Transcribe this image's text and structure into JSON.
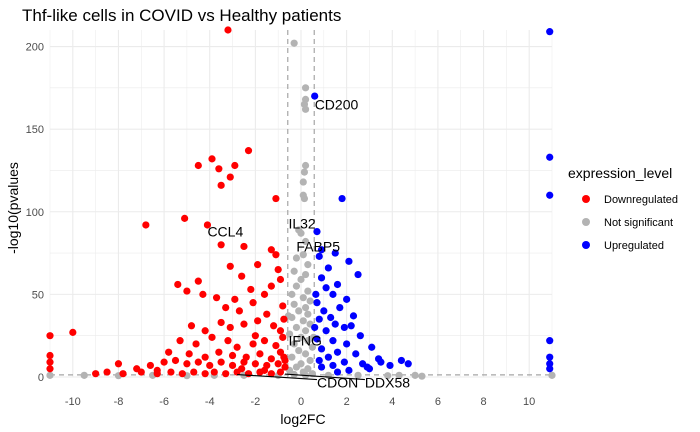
{
  "chart_data": {
    "type": "scatter",
    "title": "Thf-like cells in  COVID vs Healthy patients",
    "xlabel": "log2FC",
    "ylabel": "-log10(pvalues",
    "xlim": [
      -11,
      11
    ],
    "ylim": [
      0,
      210
    ],
    "xticks": [
      "-10",
      "-8",
      "-6",
      "-4",
      "-2",
      "0",
      "2",
      "4",
      "6",
      "8",
      "10"
    ],
    "yticks": [
      "0",
      "50",
      "100",
      "150",
      "200"
    ],
    "grid": true,
    "thresholds": {
      "log2fc": [
        -0.58,
        0.58
      ],
      "neg_log10_p": 1.3
    },
    "legend": {
      "title": "expression_level",
      "position": "right",
      "entries": [
        {
          "name": "Downregulated",
          "color": "#ff0000"
        },
        {
          "name": "Not significant",
          "color": "#b3b3b3"
        },
        {
          "name": "Upregulated",
          "color": "#0000ff"
        }
      ]
    },
    "series": [
      {
        "name": "Downregulated",
        "color": "#ff0000",
        "points": [
          [
            -3.2,
            210
          ],
          [
            -2.3,
            137
          ],
          [
            -3.9,
            132
          ],
          [
            -4.5,
            128
          ],
          [
            -3.6,
            126
          ],
          [
            -2.9,
            128
          ],
          [
            -3.1,
            121
          ],
          [
            -3.5,
            116
          ],
          [
            -1.1,
            108
          ],
          [
            -6.8,
            92
          ],
          [
            -5.1,
            96
          ],
          [
            -4.1,
            92
          ],
          [
            -3.5,
            80
          ],
          [
            -2.5,
            79
          ],
          [
            -1.3,
            77
          ],
          [
            -1.1,
            74
          ],
          [
            -1.9,
            68
          ],
          [
            -3.1,
            67
          ],
          [
            -2.6,
            61
          ],
          [
            -4.5,
            58
          ],
          [
            -5.4,
            56
          ],
          [
            -5.0,
            52
          ],
          [
            -4.3,
            50
          ],
          [
            -3.7,
            48
          ],
          [
            -2.9,
            47
          ],
          [
            -1.3,
            55
          ],
          [
            -0.9,
            59
          ],
          [
            -2.2,
            53
          ],
          [
            -1.6,
            50
          ],
          [
            -3.3,
            42
          ],
          [
            -2.1,
            45
          ],
          [
            -2.7,
            40
          ],
          [
            -1.5,
            38
          ],
          [
            -0.8,
            43
          ],
          [
            -1.9,
            34
          ],
          [
            -3.1,
            30
          ],
          [
            -4.2,
            28
          ],
          [
            -2.5,
            32
          ],
          [
            -1.2,
            31
          ],
          [
            -0.9,
            28
          ],
          [
            -10.0,
            27
          ],
          [
            -11.0,
            25
          ],
          [
            -5.3,
            22
          ],
          [
            -4.6,
            20
          ],
          [
            -3.9,
            24
          ],
          [
            -3.2,
            22
          ],
          [
            -2.8,
            18
          ],
          [
            -2.1,
            20
          ],
          [
            -1.6,
            22
          ],
          [
            -1.1,
            19
          ],
          [
            -0.8,
            24
          ],
          [
            -5.8,
            15
          ],
          [
            -4.9,
            14
          ],
          [
            -4.2,
            12
          ],
          [
            -3.6,
            15
          ],
          [
            -3.0,
            13
          ],
          [
            -2.4,
            12
          ],
          [
            -1.8,
            14
          ],
          [
            -1.3,
            11
          ],
          [
            -0.9,
            15
          ],
          [
            -0.7,
            10
          ],
          [
            -11.0,
            13
          ],
          [
            -11.0,
            9
          ],
          [
            -11.0,
            5
          ],
          [
            -8.0,
            8
          ],
          [
            -7.2,
            5
          ],
          [
            -6.6,
            7
          ],
          [
            -6.0,
            9
          ],
          [
            -5.5,
            10
          ],
          [
            -5.0,
            8
          ],
          [
            -4.5,
            9
          ],
          [
            -4.0,
            7
          ],
          [
            -3.5,
            9
          ],
          [
            -3.0,
            7
          ],
          [
            -2.5,
            9
          ],
          [
            -2.0,
            8
          ],
          [
            -1.5,
            7
          ],
          [
            -1.0,
            8
          ],
          [
            -0.7,
            6
          ],
          [
            -9.0,
            2
          ],
          [
            -8.5,
            3
          ],
          [
            -7.8,
            2
          ],
          [
            -7.0,
            3
          ],
          [
            -6.3,
            2
          ],
          [
            -5.7,
            3
          ],
          [
            -5.2,
            2
          ],
          [
            -4.7,
            3
          ],
          [
            -4.2,
            2
          ],
          [
            -3.8,
            3
          ],
          [
            -3.3,
            2
          ],
          [
            -2.8,
            3
          ],
          [
            -2.3,
            2
          ],
          [
            -1.8,
            3
          ],
          [
            -1.3,
            2
          ],
          [
            -0.9,
            3
          ],
          [
            -6.3,
            4
          ],
          [
            -2.6,
            5
          ],
          [
            -1.6,
            4
          ],
          [
            -0.75,
            12
          ],
          [
            -0.75,
            35
          ],
          [
            -1.0,
            65
          ],
          [
            -2.0,
            25
          ],
          [
            -3.5,
            33
          ],
          [
            -4.8,
            31
          ]
        ]
      },
      {
        "name": "Not significant",
        "color": "#b3b3b3",
        "points": [
          [
            -0.3,
            202
          ],
          [
            0.2,
            175
          ],
          [
            0.2,
            168
          ],
          [
            0.15,
            165
          ],
          [
            0.2,
            162
          ],
          [
            0.2,
            128
          ],
          [
            0.15,
            124
          ],
          [
            0.1,
            118
          ],
          [
            0.1,
            110
          ],
          [
            0.15,
            108
          ],
          [
            -0.1,
            89
          ],
          [
            0.0,
            87
          ],
          [
            0.2,
            82
          ],
          [
            0.1,
            74
          ],
          [
            -0.2,
            72
          ],
          [
            0.3,
            68
          ],
          [
            -0.3,
            64
          ],
          [
            0.2,
            62
          ],
          [
            0.0,
            59
          ],
          [
            -0.2,
            55
          ],
          [
            0.3,
            52
          ],
          [
            -0.4,
            50
          ],
          [
            0.1,
            48
          ],
          [
            0.4,
            46
          ],
          [
            -0.3,
            44
          ],
          [
            0.2,
            42
          ],
          [
            -0.1,
            40
          ],
          [
            0.3,
            38
          ],
          [
            -0.4,
            36
          ],
          [
            0.1,
            34
          ],
          [
            0.4,
            32
          ],
          [
            -0.2,
            30
          ],
          [
            0.2,
            28
          ],
          [
            -0.5,
            26
          ],
          [
            0.0,
            24
          ],
          [
            0.3,
            22
          ],
          [
            -0.3,
            20
          ],
          [
            0.5,
            18
          ],
          [
            -0.1,
            16
          ],
          [
            0.2,
            14
          ],
          [
            -0.4,
            12
          ],
          [
            0.4,
            10
          ],
          [
            0.0,
            8
          ],
          [
            -0.2,
            6
          ],
          [
            0.3,
            5
          ],
          [
            -0.5,
            4
          ],
          [
            0.1,
            3
          ],
          [
            0.5,
            2
          ],
          [
            -0.3,
            1.5
          ],
          [
            0.2,
            1
          ],
          [
            1.2,
            1
          ],
          [
            2.5,
            1
          ],
          [
            3.8,
            0.8
          ],
          [
            4.3,
            1
          ],
          [
            5.0,
            1
          ],
          [
            5.3,
            0.5
          ],
          [
            -1.0,
            0.9
          ],
          [
            -2.5,
            1
          ],
          [
            -3.8,
            1
          ],
          [
            -5.0,
            0.8
          ],
          [
            -6.5,
            1
          ],
          [
            -8.0,
            0.8
          ],
          [
            -9.5,
            1
          ],
          [
            -11.0,
            1
          ],
          [
            11.0,
            1
          ],
          [
            0.55,
            24
          ],
          [
            -0.55,
            37
          ]
        ]
      },
      {
        "name": "Upregulated",
        "color": "#0000ff",
        "points": [
          [
            10.9,
            209
          ],
          [
            10.9,
            133
          ],
          [
            10.9,
            110
          ],
          [
            0.6,
            170
          ],
          [
            1.8,
            108
          ],
          [
            0.7,
            88
          ],
          [
            0.9,
            77
          ],
          [
            1.5,
            75
          ],
          [
            0.8,
            73
          ],
          [
            2.1,
            70
          ],
          [
            1.2,
            66
          ],
          [
            2.5,
            62
          ],
          [
            0.9,
            60
          ],
          [
            1.6,
            56
          ],
          [
            1.1,
            54
          ],
          [
            1.4,
            50
          ],
          [
            2.0,
            47
          ],
          [
            0.7,
            45
          ],
          [
            1.7,
            42
          ],
          [
            1.0,
            40
          ],
          [
            2.3,
            37
          ],
          [
            0.8,
            35
          ],
          [
            1.5,
            32
          ],
          [
            1.9,
            30
          ],
          [
            1.1,
            28
          ],
          [
            2.6,
            25
          ],
          [
            0.7,
            23
          ],
          [
            1.4,
            22
          ],
          [
            2.0,
            20
          ],
          [
            3.1,
            18
          ],
          [
            0.9,
            17
          ],
          [
            1.6,
            15
          ],
          [
            2.4,
            14
          ],
          [
            1.2,
            12
          ],
          [
            3.4,
            11
          ],
          [
            0.8,
            10
          ],
          [
            1.9,
            9
          ],
          [
            2.7,
            8
          ],
          [
            1.4,
            7
          ],
          [
            0.9,
            6
          ],
          [
            3.0,
            5
          ],
          [
            2.1,
            4
          ],
          [
            1.6,
            3
          ],
          [
            4.4,
            10
          ],
          [
            4.7,
            8
          ],
          [
            3.9,
            7
          ],
          [
            3.5,
            9
          ],
          [
            2.9,
            6
          ],
          [
            10.9,
            22
          ],
          [
            10.9,
            12
          ],
          [
            10.9,
            8
          ],
          [
            10.9,
            5
          ],
          [
            0.6,
            30
          ],
          [
            0.65,
            50
          ],
          [
            1.3,
            36
          ],
          [
            2.2,
            31
          ]
        ]
      }
    ],
    "annotations": [
      {
        "text": "CD200",
        "x": 0.6,
        "y": 165
      },
      {
        "text": "CCL4",
        "x": -4.1,
        "y": 88
      },
      {
        "text": "IL32",
        "x": -0.55,
        "y": 93
      },
      {
        "text": "FABP5",
        "x": -0.2,
        "y": 79
      },
      {
        "text": "IFNG",
        "x": -0.55,
        "y": 22
      },
      {
        "text": "CDON",
        "x": -2.8,
        "y": 1.5,
        "label_x": 0.7,
        "label_y": -4
      },
      {
        "text": "DDX58",
        "x": -0.7,
        "y": 1.8,
        "label_x": 2.8,
        "label_y": -4
      }
    ]
  }
}
